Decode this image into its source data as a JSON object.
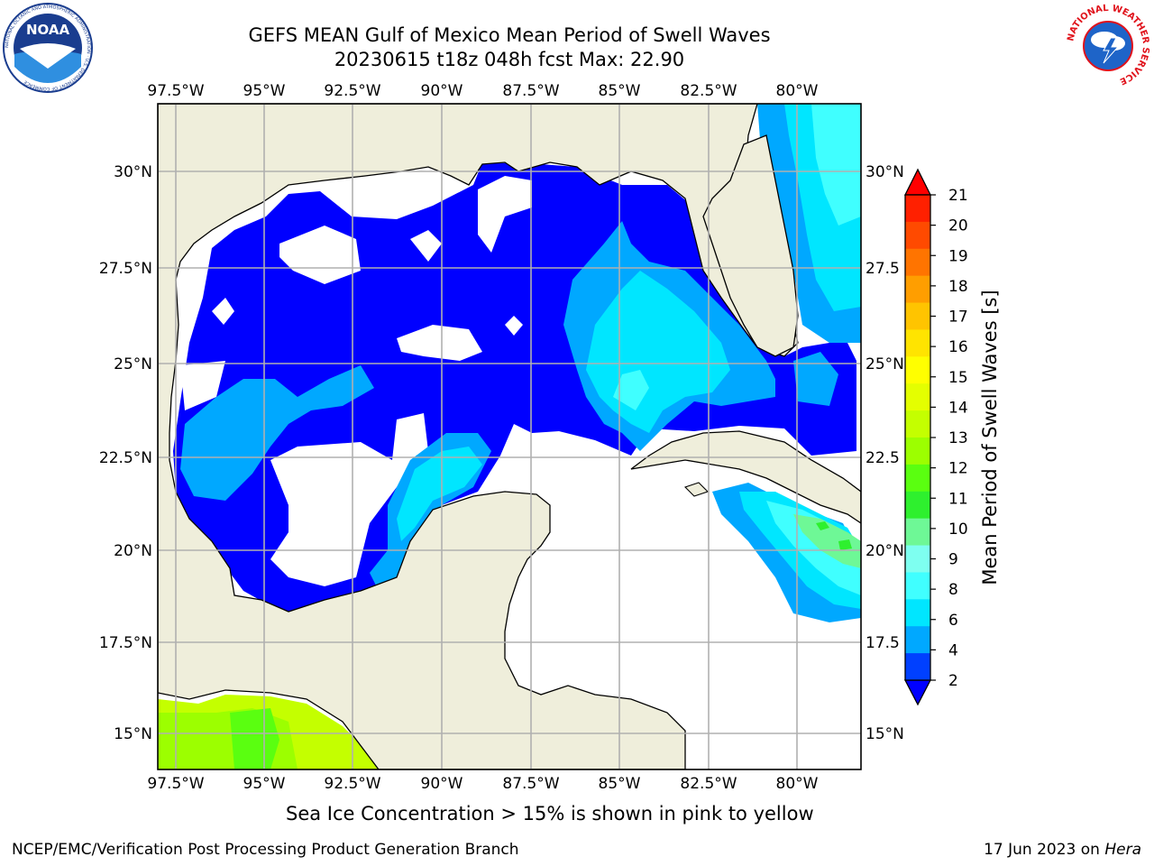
{
  "header": {
    "title_line1": "GEFS MEAN Gulf of Mexico Mean Period of Swell Waves",
    "title_line2": "20230615 t18z 048h fcst   Max: 22.90"
  },
  "logos": {
    "left": "NOAA",
    "left_ring_text": "NATIONAL OCEANIC AND ATMOSPHERIC ADMINISTRATION · U.S. DEPARTMENT OF COMMERCE",
    "right_ring_text": "NATIONAL WEATHER SERVICE"
  },
  "map": {
    "lon_labels": [
      "97.5°W",
      "95°W",
      "92.5°W",
      "90°W",
      "87.5°W",
      "85°W",
      "82.5°W",
      "80°W"
    ],
    "lat_labels_left": [
      "30°N",
      "27.5°N",
      "25°N",
      "22.5°N",
      "20°N",
      "17.5°N",
      "15°N"
    ],
    "lat_labels_right": [
      "30°N",
      "27.5",
      "25°N",
      "22.5",
      "20°N",
      "17.5",
      "15°N"
    ],
    "land_color": "#efeedb",
    "ocean_nodata_color": "#ffffff",
    "grid_color": "#b0b0b0"
  },
  "colorbar": {
    "title": "Mean Period of Swell Waves [s]",
    "ticks": [
      "21",
      "20",
      "19",
      "18",
      "17",
      "16",
      "15",
      "14",
      "13",
      "12",
      "11",
      "10",
      "9",
      "8",
      "6",
      "4",
      "2"
    ],
    "colors": [
      "#ff2000",
      "#ff4a00",
      "#ff7400",
      "#ff9e00",
      "#ffc400",
      "#ffe400",
      "#ffff00",
      "#e4ff00",
      "#c4ff00",
      "#9cff00",
      "#5aff10",
      "#2ef02e",
      "#6ef896",
      "#7efff0",
      "#40ffff",
      "#00e6ff",
      "#00a8ff",
      "#0040ff"
    ],
    "under_color": "#0000ff",
    "over_color": "#ff0000"
  },
  "footer": {
    "note": "Sea Ice Concentration > 15% is shown in pink to yellow",
    "left": "NCEP/EMC/Verification Post Processing Product Generation Branch",
    "right_prefix": "17 Jun 2023 on ",
    "right_host": "Hera"
  }
}
